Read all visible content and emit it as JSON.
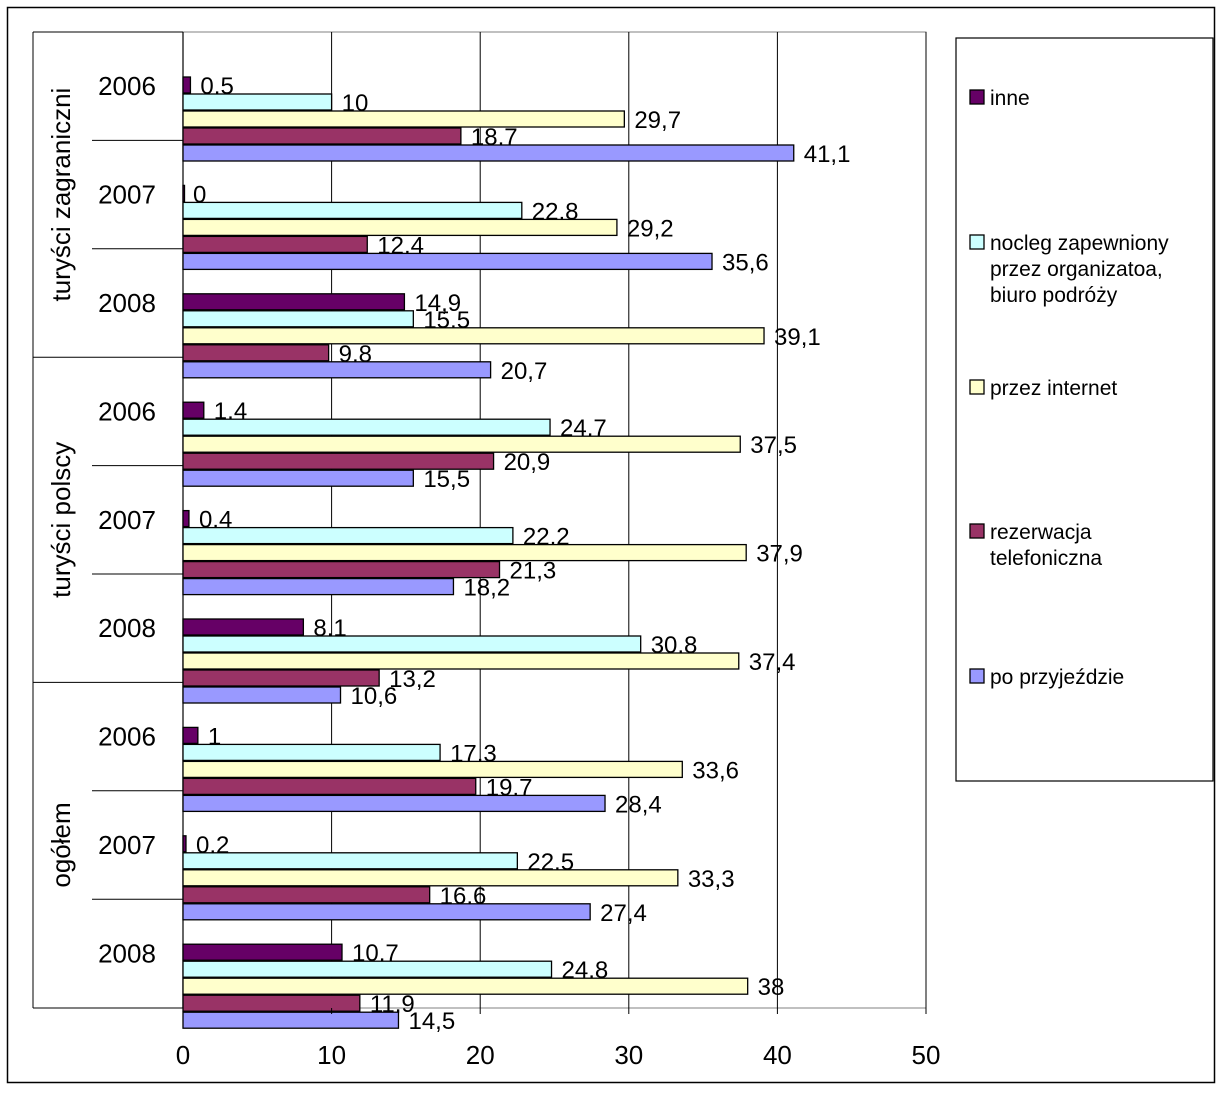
{
  "chart_data": {
    "type": "bar",
    "orientation": "horizontal",
    "groups": [
      {
        "name": "turyści zagraniczni",
        "years": [
          "2006",
          "2007",
          "2008"
        ]
      },
      {
        "name": "turyści polscy",
        "years": [
          "2006",
          "2007",
          "2008"
        ]
      },
      {
        "name": "ogółem",
        "years": [
          "2006",
          "2007",
          "2008"
        ]
      }
    ],
    "series": [
      {
        "key": "inne",
        "name": "inne",
        "color": "#660066",
        "values": [
          0.5,
          0,
          14.9,
          1.4,
          0.4,
          8.1,
          1,
          0.2,
          10.7
        ]
      },
      {
        "key": "nocleg",
        "name": "nocleg zapewniony przez organizatoa, biuro podróży",
        "color": "#ccffff",
        "values": [
          10,
          22.8,
          15.5,
          24.7,
          22.2,
          30.8,
          17.3,
          22.5,
          24.8
        ]
      },
      {
        "key": "internet",
        "name": "przez internet",
        "color": "#ffffcc",
        "values": [
          29.7,
          29.2,
          39.1,
          37.5,
          37.9,
          37.4,
          33.6,
          33.3,
          38
        ]
      },
      {
        "key": "telefon",
        "name": "rezerwacja telefoniczna",
        "color": "#993366",
        "values": [
          18.7,
          12.4,
          9.8,
          20.9,
          21.3,
          13.2,
          19.7,
          16.6,
          11.9
        ]
      },
      {
        "key": "przyjazd",
        "name": "po przyjeździe",
        "color": "#9999ff",
        "values": [
          41.1,
          35.6,
          20.7,
          15.5,
          18.2,
          10.6,
          28.4,
          27.4,
          14.5
        ]
      }
    ],
    "data_labels": {
      "inne": [
        "0,5",
        "0",
        "14,9",
        "1,4",
        "0,4",
        "8,1",
        "1",
        "0,2",
        "10,7"
      ],
      "nocleg": [
        "10",
        "22,8",
        "15,5",
        "24,7",
        "22,2",
        "30,8",
        "17,3",
        "22,5",
        "24,8"
      ],
      "internet": [
        "29,7",
        "29,2",
        "39,1",
        "37,5",
        "37,9",
        "37,4",
        "33,6",
        "33,3",
        "38"
      ],
      "telefon": [
        "18,7",
        "12,4",
        "9,8",
        "20,9",
        "21,3",
        "13,2",
        "19,7",
        "16,6",
        "11,9"
      ],
      "przyjazd": [
        "41,1",
        "35,6",
        "20,7",
        "15,5",
        "18,2",
        "10,6",
        "28,4",
        "27,4",
        "14,5"
      ]
    },
    "legend": {
      "placement": "right",
      "entries": [
        {
          "series": "inne",
          "lines": [
            "inne"
          ]
        },
        {
          "series": "nocleg",
          "lines": [
            "nocleg zapewniony",
            "przez organizatoa,",
            "biuro podróży"
          ]
        },
        {
          "series": "internet",
          "lines": [
            "przez internet"
          ]
        },
        {
          "series": "telefon",
          "lines": [
            "rezerwacja",
            "telefoniczna"
          ]
        },
        {
          "series": "przyjazd",
          "lines": [
            "po przyjeździe"
          ]
        }
      ]
    },
    "xlim": [
      0,
      50
    ],
    "x_ticks": [
      "0",
      "10",
      "20",
      "30",
      "40",
      "50"
    ],
    "grid": "vertical",
    "plot_area_color": "#ffffff"
  }
}
